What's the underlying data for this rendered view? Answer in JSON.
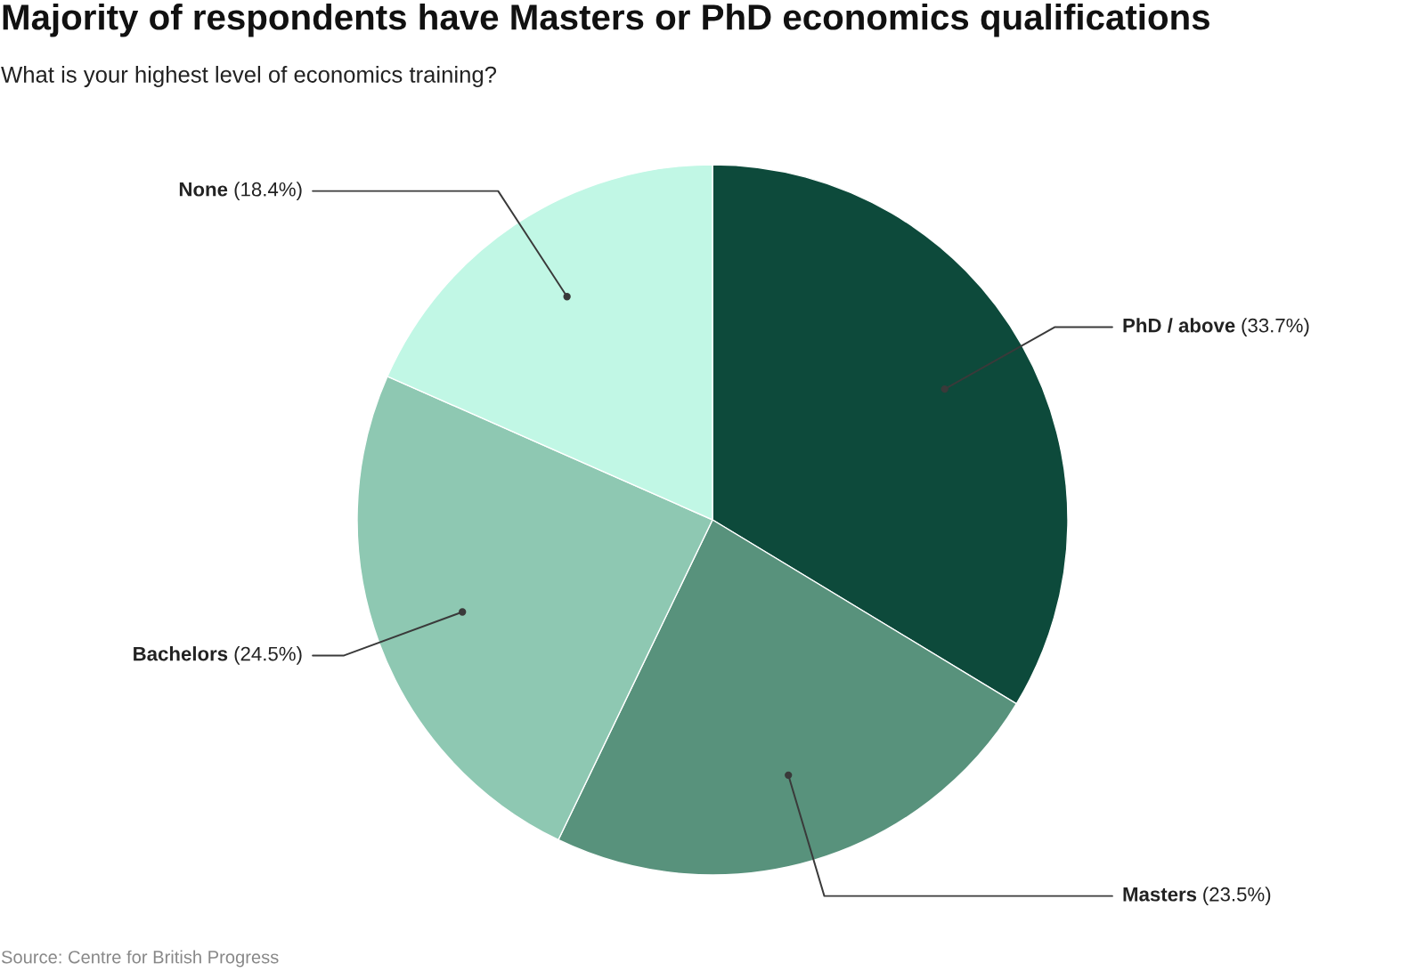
{
  "chart_data": {
    "type": "pie",
    "title": "Majority of respondents have Masters or PhD economics qualifications",
    "subtitle": "What is your highest level of economics training?",
    "categories": [
      "PhD / above",
      "Masters",
      "Bachelors",
      "None"
    ],
    "values": [
      33.7,
      23.5,
      24.5,
      18.4
    ],
    "colors": [
      "#0d4a3b",
      "#58927c",
      "#8ec8b2",
      "#c1f7e5"
    ],
    "value_labels": [
      "(33.7%)",
      "(23.5%)",
      "(24.5%)",
      "(18.4%)"
    ],
    "annotations": [
      "Source: Centre for British Progress"
    ]
  }
}
